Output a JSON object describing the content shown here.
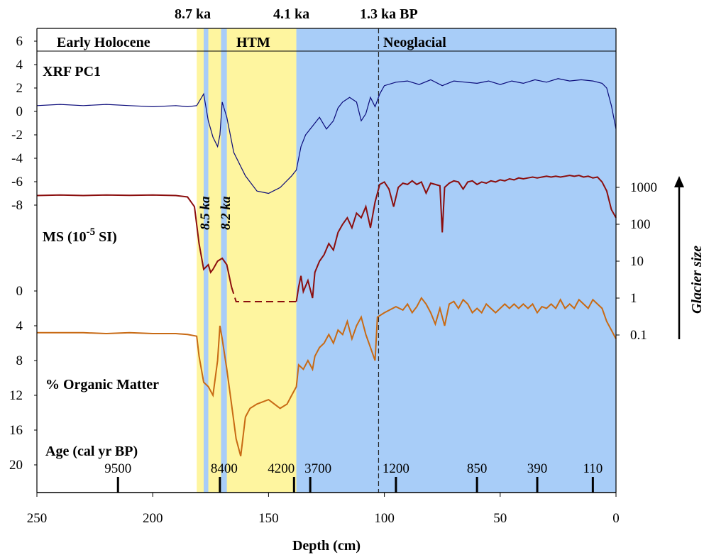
{
  "chart_data": {
    "type": "line",
    "xlabel": "Depth (cm)",
    "xlim": [
      250,
      0
    ],
    "x_ticks": [
      "250",
      "200",
      "150",
      "100",
      "50",
      "0"
    ],
    "top_annotations": [
      "8.7 ka",
      "4.1 ka",
      "1.3 ka BP"
    ],
    "periods": [
      {
        "label": "Early Holocene",
        "from": 250,
        "to": 181,
        "color": "#ffffff"
      },
      {
        "label": "HTM",
        "from": 181,
        "to": 138,
        "color": "#fef59f"
      },
      {
        "label": "Neoglacial",
        "from": 138,
        "to": 0,
        "color": "#a8cdf8"
      }
    ],
    "cold_events": [
      {
        "label": "8.5 ka",
        "from": 178,
        "to": 176
      },
      {
        "label": "8.2 ka",
        "from": 170.5,
        "to": 168
      }
    ],
    "event_band_color": "#a8cdf8",
    "dashed_line_depth": 102.5,
    "series": [
      {
        "name": "XRF PC1",
        "color": "#0a0a7a",
        "y_ticks": [
          "6",
          "4",
          "2",
          "0",
          "-2",
          "-4",
          "-6",
          "-8"
        ],
        "points": [
          [
            250,
            0.5
          ],
          [
            240,
            0.6
          ],
          [
            230,
            0.5
          ],
          [
            220,
            0.6
          ],
          [
            210,
            0.5
          ],
          [
            200,
            0.4
          ],
          [
            190,
            0.5
          ],
          [
            185,
            0.4
          ],
          [
            181,
            0.5
          ],
          [
            178,
            1.5
          ],
          [
            176,
            -0.8
          ],
          [
            174,
            -2.2
          ],
          [
            172,
            -3.0
          ],
          [
            171,
            -2.0
          ],
          [
            170,
            0.8
          ],
          [
            168,
            -0.5
          ],
          [
            165,
            -3.5
          ],
          [
            160,
            -5.5
          ],
          [
            155,
            -6.8
          ],
          [
            150,
            -7.0
          ],
          [
            145,
            -6.5
          ],
          [
            140,
            -5.5
          ],
          [
            138,
            -5.0
          ],
          [
            136,
            -3.0
          ],
          [
            134,
            -2.0
          ],
          [
            132,
            -1.5
          ],
          [
            130,
            -1.0
          ],
          [
            128,
            -0.5
          ],
          [
            125,
            -1.5
          ],
          [
            122,
            -0.8
          ],
          [
            120,
            0.3
          ],
          [
            118,
            0.8
          ],
          [
            115,
            1.2
          ],
          [
            112,
            0.8
          ],
          [
            110,
            -0.8
          ],
          [
            108,
            -0.2
          ],
          [
            106,
            1.2
          ],
          [
            104,
            0.4
          ],
          [
            102,
            1.5
          ],
          [
            100,
            2.2
          ],
          [
            95,
            2.5
          ],
          [
            90,
            2.6
          ],
          [
            85,
            2.3
          ],
          [
            80,
            2.7
          ],
          [
            75,
            2.2
          ],
          [
            70,
            2.6
          ],
          [
            65,
            2.5
          ],
          [
            60,
            2.4
          ],
          [
            55,
            2.6
          ],
          [
            50,
            2.3
          ],
          [
            45,
            2.6
          ],
          [
            40,
            2.4
          ],
          [
            35,
            2.7
          ],
          [
            30,
            2.5
          ],
          [
            25,
            2.8
          ],
          [
            20,
            2.6
          ],
          [
            15,
            2.7
          ],
          [
            10,
            2.6
          ],
          [
            6,
            2.4
          ],
          [
            4,
            2.0
          ],
          [
            2,
            0.5
          ],
          [
            0,
            -1.5
          ]
        ]
      },
      {
        "name": "MS (10-5 SI)",
        "color": "#8b0e0e",
        "y_ticks": [
          "1000",
          "100",
          "10",
          "1",
          "0.1"
        ],
        "points": [
          [
            250,
            600
          ],
          [
            240,
            620
          ],
          [
            230,
            600
          ],
          [
            220,
            620
          ],
          [
            210,
            610
          ],
          [
            200,
            620
          ],
          [
            190,
            600
          ],
          [
            185,
            550
          ],
          [
            182,
            300
          ],
          [
            180,
            30
          ],
          [
            178,
            6
          ],
          [
            176,
            8
          ],
          [
            175,
            5
          ],
          [
            174,
            6
          ],
          [
            172,
            10
          ],
          [
            170,
            12
          ],
          [
            168,
            8
          ],
          [
            166,
            2
          ],
          [
            164,
            0.8
          ],
          [
            150,
            0.8
          ],
          [
            140,
            0.8
          ],
          [
            138,
            0.8
          ],
          [
            137,
            2
          ],
          [
            136,
            4
          ],
          [
            135,
            1.5
          ],
          [
            133,
            3
          ],
          [
            131,
            1
          ],
          [
            130,
            5
          ],
          [
            128,
            10
          ],
          [
            126,
            15
          ],
          [
            124,
            30
          ],
          [
            122,
            20
          ],
          [
            120,
            60
          ],
          [
            118,
            100
          ],
          [
            116,
            150
          ],
          [
            114,
            80
          ],
          [
            112,
            200
          ],
          [
            110,
            150
          ],
          [
            108,
            300
          ],
          [
            106,
            80
          ],
          [
            104,
            400
          ],
          [
            102,
            1200
          ],
          [
            100,
            1400
          ],
          [
            98,
            900
          ],
          [
            96,
            300
          ],
          [
            94,
            1000
          ],
          [
            92,
            1300
          ],
          [
            90,
            1200
          ],
          [
            88,
            1500
          ],
          [
            86,
            1200
          ],
          [
            84,
            1400
          ],
          [
            82,
            700
          ],
          [
            80,
            1300
          ],
          [
            78,
            1200
          ],
          [
            76,
            1100
          ],
          [
            75,
            60
          ],
          [
            74,
            1000
          ],
          [
            72,
            1300
          ],
          [
            70,
            1500
          ],
          [
            68,
            1400
          ],
          [
            66,
            900
          ],
          [
            64,
            1400
          ],
          [
            62,
            1500
          ],
          [
            60,
            1200
          ],
          [
            58,
            1400
          ],
          [
            56,
            1300
          ],
          [
            54,
            1500
          ],
          [
            52,
            1400
          ],
          [
            50,
            1600
          ],
          [
            48,
            1500
          ],
          [
            46,
            1700
          ],
          [
            44,
            1600
          ],
          [
            42,
            1800
          ],
          [
            40,
            1700
          ],
          [
            38,
            1800
          ],
          [
            36,
            1900
          ],
          [
            34,
            1800
          ],
          [
            32,
            1900
          ],
          [
            30,
            2000
          ],
          [
            28,
            1900
          ],
          [
            26,
            2000
          ],
          [
            24,
            1900
          ],
          [
            22,
            2000
          ],
          [
            20,
            2100
          ],
          [
            18,
            2000
          ],
          [
            16,
            2100
          ],
          [
            14,
            1900
          ],
          [
            12,
            2000
          ],
          [
            10,
            1800
          ],
          [
            8,
            1900
          ],
          [
            6,
            1400
          ],
          [
            4,
            800
          ],
          [
            2,
            250
          ],
          [
            0,
            150
          ]
        ]
      },
      {
        "name": "% Organic Matter",
        "color": "#c86a14",
        "y_ticks": [
          "0",
          "4",
          "8",
          "12",
          "16",
          "20"
        ],
        "points": [
          [
            250,
            4.8
          ],
          [
            240,
            4.8
          ],
          [
            230,
            4.8
          ],
          [
            220,
            4.9
          ],
          [
            210,
            4.8
          ],
          [
            200,
            4.9
          ],
          [
            190,
            4.9
          ],
          [
            185,
            5.0
          ],
          [
            181,
            5.2
          ],
          [
            180,
            7.5
          ],
          [
            178,
            10.5
          ],
          [
            176,
            11.0
          ],
          [
            174,
            12.0
          ],
          [
            172,
            8.0
          ],
          [
            171,
            4.0
          ],
          [
            170,
            5.5
          ],
          [
            168,
            9.0
          ],
          [
            166,
            13.0
          ],
          [
            164,
            17.0
          ],
          [
            162,
            19.0
          ],
          [
            160,
            14.5
          ],
          [
            158,
            13.5
          ],
          [
            155,
            13.0
          ],
          [
            150,
            12.5
          ],
          [
            145,
            13.5
          ],
          [
            142,
            13.0
          ],
          [
            140,
            12.0
          ],
          [
            138,
            11.0
          ],
          [
            137,
            8.5
          ],
          [
            135,
            9.0
          ],
          [
            133,
            8.0
          ],
          [
            131,
            9.0
          ],
          [
            130,
            7.5
          ],
          [
            128,
            6.5
          ],
          [
            126,
            6.0
          ],
          [
            124,
            5.0
          ],
          [
            122,
            6.0
          ],
          [
            120,
            4.5
          ],
          [
            118,
            5.0
          ],
          [
            116,
            3.5
          ],
          [
            114,
            5.5
          ],
          [
            112,
            4.0
          ],
          [
            110,
            3.0
          ],
          [
            108,
            5.0
          ],
          [
            106,
            6.5
          ],
          [
            104,
            8.0
          ],
          [
            103,
            3.0
          ],
          [
            100,
            2.5
          ],
          [
            95,
            1.8
          ],
          [
            92,
            2.2
          ],
          [
            90,
            1.5
          ],
          [
            88,
            2.5
          ],
          [
            86,
            1.8
          ],
          [
            84,
            0.8
          ],
          [
            82,
            1.5
          ],
          [
            80,
            2.5
          ],
          [
            78,
            3.8
          ],
          [
            76,
            2.0
          ],
          [
            74,
            4.0
          ],
          [
            72,
            1.5
          ],
          [
            70,
            1.2
          ],
          [
            68,
            2.0
          ],
          [
            66,
            1.0
          ],
          [
            64,
            1.5
          ],
          [
            62,
            2.5
          ],
          [
            60,
            2.0
          ],
          [
            58,
            2.5
          ],
          [
            56,
            1.5
          ],
          [
            54,
            2.0
          ],
          [
            52,
            2.5
          ],
          [
            50,
            2.0
          ],
          [
            48,
            1.5
          ],
          [
            46,
            2.0
          ],
          [
            44,
            1.5
          ],
          [
            42,
            2.0
          ],
          [
            40,
            1.5
          ],
          [
            38,
            2.0
          ],
          [
            36,
            1.5
          ],
          [
            34,
            2.5
          ],
          [
            32,
            1.8
          ],
          [
            30,
            2.0
          ],
          [
            28,
            1.5
          ],
          [
            26,
            2.0
          ],
          [
            24,
            1.0
          ],
          [
            22,
            2.0
          ],
          [
            20,
            1.5
          ],
          [
            18,
            2.0
          ],
          [
            16,
            1.0
          ],
          [
            14,
            1.5
          ],
          [
            12,
            2.0
          ],
          [
            10,
            1.0
          ],
          [
            8,
            1.5
          ],
          [
            6,
            2.0
          ],
          [
            4,
            3.5
          ],
          [
            2,
            4.5
          ],
          [
            0,
            5.5
          ]
        ]
      }
    ],
    "organic_dashed_gap": [
      166,
      138
    ],
    "ms_dashed_range": [
      166,
      138
    ],
    "age_axis": {
      "label": "Age (cal yr BP)",
      "markers": [
        {
          "depth": 215,
          "age": "9500"
        },
        {
          "depth": 171,
          "age": "8400"
        },
        {
          "depth": 139,
          "age": "4200"
        },
        {
          "depth": 132,
          "age": "3700"
        },
        {
          "depth": 95,
          "age": "1200"
        },
        {
          "depth": 60,
          "age": "850"
        },
        {
          "depth": 34,
          "age": "390"
        },
        {
          "depth": 10,
          "age": "110"
        }
      ]
    },
    "right_axis_label": "Glacier size"
  },
  "labels": {
    "xrf": "XRF PC1",
    "ms_main": "MS (10",
    "ms_exp": "-5",
    "ms_tail": " SI)",
    "organic": "% Organic Matter",
    "age": "Age (cal yr BP)",
    "early": "Early Holocene",
    "htm": "HTM",
    "neo": "Neoglacial",
    "ka87": "8.7 ka",
    "ka41": "4.1 ka",
    "ka13": "1.3 ka BP",
    "ev85": "8.5 ka",
    "ev82": "8.2 ka",
    "glacier": "Glacier size",
    "xlabel": "Depth (cm)"
  }
}
